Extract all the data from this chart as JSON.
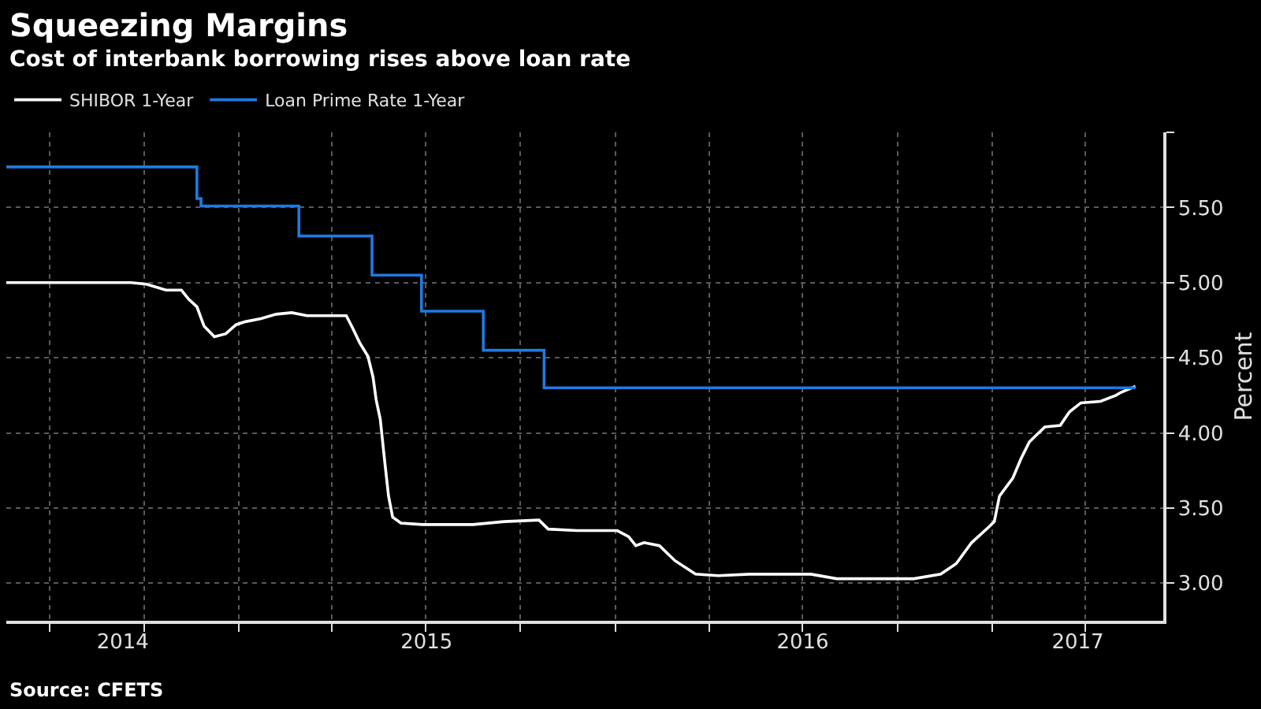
{
  "chart_data": {
    "type": "line",
    "title": "Squeezing Margins",
    "subtitle": "Cost of interbank borrowing rises above loan rate",
    "ylabel": "Percent",
    "annotations": [
      "Source: CFETS"
    ],
    "legend": "top left",
    "grid": true,
    "ylim": [
      2.75,
      6.0
    ],
    "yticks": [
      {
        "value": 3.0,
        "label": "3.00"
      },
      {
        "value": 3.5,
        "label": "3.50"
      },
      {
        "value": 4.0,
        "label": "4.00"
      },
      {
        "value": 4.5,
        "label": "4.50"
      },
      {
        "value": 5.0,
        "label": "5.00"
      },
      {
        "value": 5.5,
        "label": "5.50"
      },
      {
        "value": 6.0,
        "label": null
      }
    ],
    "xlim": [
      "2014-05-20",
      "2017-06-16"
    ],
    "xticks": [
      {
        "value": "2014-07-01",
        "label": null
      },
      {
        "value": "2014-10-01",
        "label": null
      },
      {
        "value": "2015-01-01",
        "label": null
      },
      {
        "value": "2015-04-01",
        "label": null
      },
      {
        "value": "2015-07-01",
        "label": null
      },
      {
        "value": "2015-10-01",
        "label": null
      },
      {
        "value": "2016-01-01",
        "label": null
      },
      {
        "value": "2016-04-01",
        "label": null
      },
      {
        "value": "2016-07-01",
        "label": null
      },
      {
        "value": "2016-10-01",
        "label": null
      },
      {
        "value": "2017-01-01",
        "label": null
      },
      {
        "value": "2017-04-01",
        "label": null
      },
      {
        "value": "2014-09-10",
        "label": "2014"
      },
      {
        "value": "2015-07-02",
        "label": "2015"
      },
      {
        "value": "2016-07-01",
        "label": "2016"
      },
      {
        "value": "2017-03-25",
        "label": "2017"
      }
    ],
    "series": [
      {
        "name": "SHIBOR 1-Year",
        "color": "#ffffff",
        "x": [
          "2014-05-20",
          "2014-09-18",
          "2014-10-03",
          "2014-10-22",
          "2014-11-06",
          "2014-11-13",
          "2014-11-21",
          "2014-11-28",
          "2014-12-08",
          "2014-12-19",
          "2014-12-29",
          "2015-01-07",
          "2015-01-22",
          "2015-02-06",
          "2015-02-21",
          "2015-03-08",
          "2015-04-15",
          "2015-04-21",
          "2015-04-28",
          "2015-05-06",
          "2015-05-11",
          "2015-05-14",
          "2015-05-18",
          "2015-05-22",
          "2015-05-26",
          "2015-05-30",
          "2015-06-07",
          "2015-06-28",
          "2015-08-16",
          "2015-09-15",
          "2015-10-19",
          "2015-10-28",
          "2015-11-25",
          "2016-01-03",
          "2016-01-14",
          "2016-01-21",
          "2016-01-29",
          "2016-02-13",
          "2016-02-28",
          "2016-03-19",
          "2016-04-10",
          "2016-05-10",
          "2016-07-09",
          "2016-08-03",
          "2016-10-17",
          "2016-11-12",
          "2016-11-27",
          "2016-12-12",
          "2016-12-28",
          "2017-01-03",
          "2017-01-08",
          "2017-01-21",
          "2017-01-29",
          "2017-02-06",
          "2017-02-21",
          "2017-03-08",
          "2017-03-17",
          "2017-03-28",
          "2017-04-16",
          "2017-05-01",
          "2017-05-06",
          "2017-05-20"
        ],
        "values": [
          5.0,
          5.0,
          4.99,
          4.95,
          4.95,
          4.89,
          4.84,
          4.71,
          4.64,
          4.66,
          4.72,
          4.74,
          4.76,
          4.79,
          4.8,
          4.78,
          4.78,
          4.7,
          4.6,
          4.51,
          4.37,
          4.22,
          4.09,
          3.83,
          3.58,
          3.44,
          3.4,
          3.39,
          3.39,
          3.41,
          3.42,
          3.36,
          3.35,
          3.35,
          3.31,
          3.25,
          3.27,
          3.25,
          3.15,
          3.06,
          3.05,
          3.06,
          3.06,
          3.03,
          3.03,
          3.06,
          3.13,
          3.27,
          3.37,
          3.41,
          3.58,
          3.7,
          3.83,
          3.94,
          4.04,
          4.05,
          4.14,
          4.2,
          4.21,
          4.25,
          4.27,
          4.31
        ]
      },
      {
        "name": "Loan Prime Rate 1-Year",
        "color": "#1f7ae0",
        "type": "step",
        "x": [
          "2014-05-20",
          "2014-11-21",
          "2014-11-25",
          "2015-02-28",
          "2015-05-10",
          "2015-06-27",
          "2015-08-26",
          "2015-10-24",
          "2017-05-20"
        ],
        "values": [
          5.77,
          5.56,
          5.51,
          5.31,
          5.05,
          4.81,
          4.55,
          4.3,
          4.3
        ]
      }
    ]
  }
}
